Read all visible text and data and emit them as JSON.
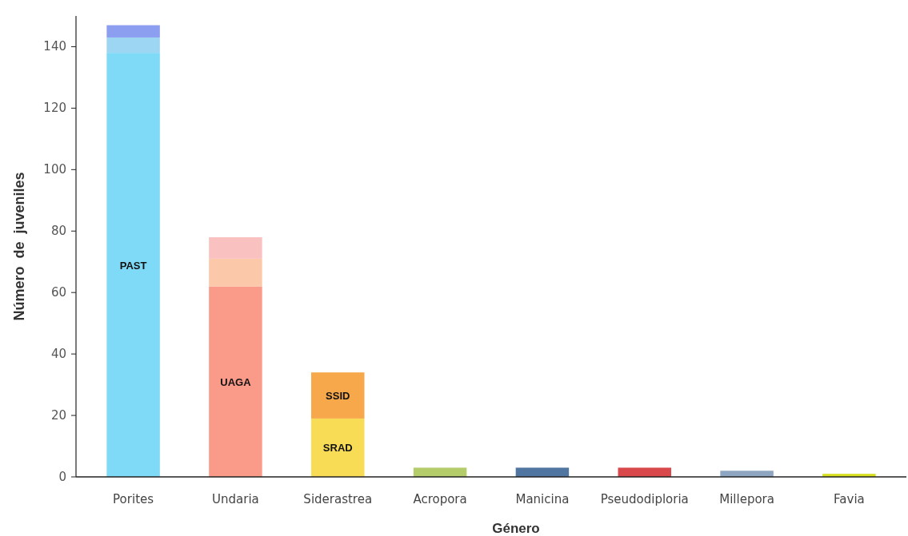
{
  "chart_data": {
    "type": "bar",
    "stacked": true,
    "xlabel": "Género",
    "ylabel": "Número  de  juveniles",
    "categories": [
      "Porites",
      "Undaria",
      "Siderastrea",
      "Acropora",
      "Manicina",
      "Pseudodiploria",
      "Millepora",
      "Favia"
    ],
    "ylim": [
      0,
      150
    ],
    "yticks": [
      0,
      20,
      40,
      60,
      80,
      100,
      120,
      140
    ],
    "grid": false,
    "series": [
      {
        "name": "PAST",
        "color": "#7fdaf8",
        "values": [
          138,
          null,
          null,
          null,
          null,
          null,
          null,
          null
        ]
      },
      {
        "color": "#9cd6f2",
        "values": [
          5,
          null,
          null,
          null,
          null,
          null,
          null,
          null
        ]
      },
      {
        "color": "#8c9ef0",
        "values": [
          4,
          null,
          null,
          null,
          null,
          null,
          null,
          null
        ]
      },
      {
        "name": "UAGA",
        "color": "#fa9a88",
        "values": [
          null,
          62,
          null,
          null,
          null,
          null,
          null,
          null
        ]
      },
      {
        "color": "#fbc9aa",
        "values": [
          null,
          9,
          null,
          null,
          null,
          null,
          null,
          null
        ]
      },
      {
        "color": "#f9c2c0",
        "values": [
          null,
          7,
          null,
          null,
          null,
          null,
          null,
          null
        ]
      },
      {
        "name": "SRAD",
        "color": "#f9dc55",
        "values": [
          null,
          null,
          19,
          null,
          null,
          null,
          null,
          null
        ]
      },
      {
        "name": "SSID",
        "color": "#f6a84a",
        "values": [
          null,
          null,
          15,
          null,
          null,
          null,
          null,
          null
        ]
      },
      {
        "color": "#b5cc6a",
        "values": [
          null,
          null,
          null,
          3,
          null,
          null,
          null,
          null
        ]
      },
      {
        "color": "#4f75a0",
        "values": [
          null,
          null,
          null,
          null,
          3,
          null,
          null,
          null
        ]
      },
      {
        "color": "#d9484a",
        "values": [
          null,
          null,
          null,
          null,
          null,
          3,
          null,
          null
        ]
      },
      {
        "color": "#8fa6c2",
        "values": [
          null,
          null,
          null,
          null,
          null,
          null,
          2,
          null
        ]
      },
      {
        "color": "#d8e020",
        "values": [
          null,
          null,
          null,
          null,
          null,
          null,
          null,
          1
        ]
      }
    ]
  }
}
